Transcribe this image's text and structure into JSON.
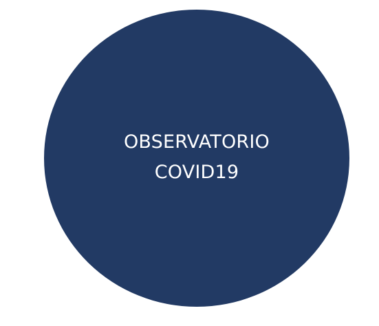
{
  "badge": {
    "line1": "OBSERVATORIO",
    "line2": "COVID19",
    "fill_color": "#223a64",
    "text_color": "#ffffff",
    "background_color": "#ffffff"
  }
}
